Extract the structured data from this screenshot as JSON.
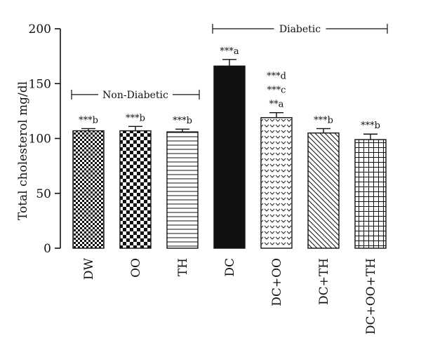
{
  "chart_data": {
    "type": "bar",
    "ylabel": "Total cholesterol mg/dl",
    "xlabel": "",
    "ylim": [
      0,
      200
    ],
    "yticks": [
      0,
      50,
      100,
      150,
      200
    ],
    "categories": [
      "DW",
      "OO",
      "TH",
      "DC",
      "DC+OO",
      "DC+TH",
      "DC+OO+TH"
    ],
    "values": [
      107,
      107,
      106,
      166,
      119,
      105,
      99
    ],
    "errors": [
      2,
      4,
      2.5,
      6,
      4.5,
      4,
      5
    ],
    "annotations": [
      [
        "***b"
      ],
      [
        "***b"
      ],
      [
        "***b"
      ],
      [
        "***a"
      ],
      [
        "***d",
        "***c",
        "**a"
      ],
      [
        "***b"
      ],
      [
        "***b"
      ]
    ],
    "fills": [
      "small-checker",
      "large-checker",
      "horizontal-lines",
      "solid-black",
      "chevron-dots",
      "diagonal-lines",
      "grid"
    ],
    "groups": [
      {
        "label": "Non-Diabetic",
        "from": 0,
        "to": 2,
        "y": 140
      },
      {
        "label": "Diabetic",
        "from": 3,
        "to": 6,
        "y": 200
      }
    ]
  }
}
